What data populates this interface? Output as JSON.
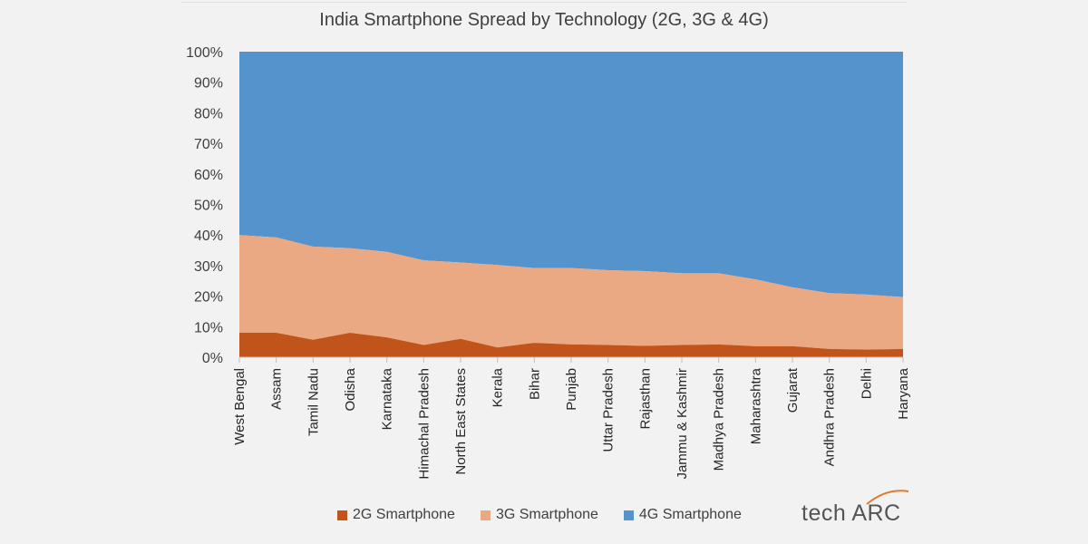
{
  "header": {
    "logo_text": "tech ARC"
  },
  "colors": {
    "2g": "#c0541a",
    "3g": "#eaa883",
    "4g": "#5593cc",
    "background": "#f2f2f2"
  },
  "chart_data": {
    "type": "area",
    "stacked": true,
    "title": "India Smartphone Spread by Technology (2G, 3G & 4G)",
    "xlabel": "",
    "ylabel": "",
    "ylim": [
      0,
      100
    ],
    "ytick_labels": [
      "0%",
      "10%",
      "20%",
      "30%",
      "40%",
      "50%",
      "60%",
      "70%",
      "80%",
      "90%",
      "100%"
    ],
    "categories": [
      "West Bengal",
      "Assam",
      "Tamil Nadu",
      "Odisha",
      "Karnataka",
      "Himachal Pradesh",
      "North East States",
      "Kerala",
      "Bihar",
      "Punjab",
      "Uttar Pradesh",
      "Rajasthan",
      "Jammu & Kashmir",
      "Madhya Pradesh",
      "Maharashtra",
      "Gujarat",
      "Andhra Pradesh",
      "Delhi",
      "Haryana"
    ],
    "series": [
      {
        "name": "2G Smartphone",
        "values": [
          8,
          8,
          5.7,
          8,
          6.5,
          4,
          6,
          3.2,
          4.7,
          4.2,
          4,
          3.7,
          4,
          4.2,
          3.6,
          3.6,
          2.7,
          2.5,
          2.7
        ]
      },
      {
        "name": "3G Smartphone",
        "values": [
          32,
          31.2,
          30.5,
          27.7,
          28,
          27.7,
          25,
          27,
          24.5,
          25,
          24.5,
          24.5,
          23.5,
          23.3,
          21.9,
          19.3,
          18.3,
          18,
          17
        ]
      },
      {
        "name": "4G Smartphone",
        "values": [
          60,
          60.8,
          63.8,
          64.3,
          65.5,
          68.3,
          69,
          69.8,
          70.8,
          70.8,
          71.5,
          71.8,
          72.5,
          72.5,
          74.5,
          77.1,
          79,
          79.5,
          80.3
        ]
      }
    ],
    "legend_position": "bottom",
    "grid": false
  }
}
